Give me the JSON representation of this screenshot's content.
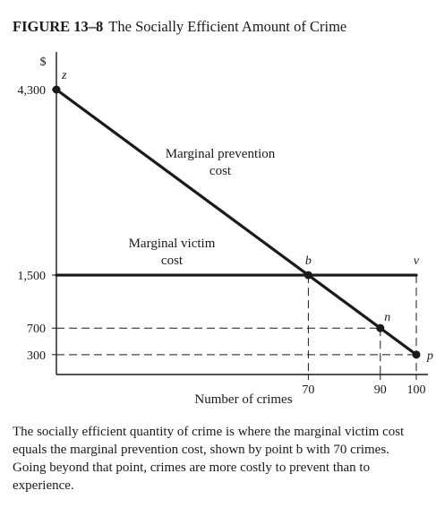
{
  "figure": {
    "number": "FIGURE 13–8",
    "title": "The Socially Efficient Amount of Crime"
  },
  "caption": "The socially efficient quantity of crime is where the marginal victim cost equals the marginal prevention cost, shown by point b with 70 crimes. Going beyond that point, crimes are more costly to prevent than to experience.",
  "chart_data": {
    "type": "line",
    "title": "The Socially Efficient Amount of Crime",
    "xlabel": "Number of crimes",
    "ylabel": "$",
    "xlim": [
      0,
      100
    ],
    "ylim": [
      0,
      4300
    ],
    "grid": false,
    "x_ticks": [
      70,
      90,
      100
    ],
    "y_ticks": [
      300,
      700,
      1500,
      4300
    ],
    "x_tick_labels": [
      "70",
      "90",
      "100"
    ],
    "y_tick_labels": [
      "300",
      "700",
      "1,500",
      "4,300"
    ],
    "series": [
      {
        "name": "Marginal prevention cost",
        "label_lines": [
          "Marginal prevention",
          "cost"
        ],
        "points": [
          [
            0,
            4300
          ],
          [
            100,
            300
          ]
        ]
      },
      {
        "name": "Marginal victim cost",
        "label_lines": [
          "Marginal victim",
          "cost"
        ],
        "points": [
          [
            0,
            1500
          ],
          [
            100,
            1500
          ]
        ]
      }
    ],
    "points": [
      {
        "label": "z",
        "x": 0,
        "y": 4300
      },
      {
        "label": "b",
        "x": 70,
        "y": 1500
      },
      {
        "label": "n",
        "x": 90,
        "y": 700
      },
      {
        "label": "v",
        "x": 100,
        "y": 1500
      },
      {
        "label": "p",
        "x": 100,
        "y": 300
      }
    ],
    "reference_lines": [
      {
        "axis": "y",
        "value": 700,
        "to_x": 90
      },
      {
        "axis": "y",
        "value": 300,
        "to_x": 100
      },
      {
        "axis": "x",
        "value": 70,
        "from_y": 1500
      },
      {
        "axis": "x",
        "value": 90,
        "from_y": 700
      },
      {
        "axis": "x",
        "value": 100,
        "from_y": 1500
      }
    ]
  }
}
